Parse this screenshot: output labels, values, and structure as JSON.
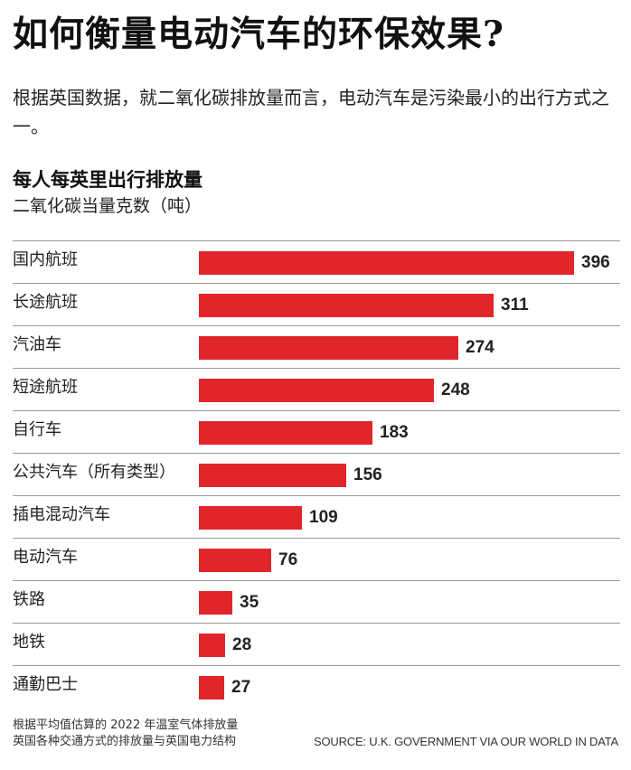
{
  "headline": "如何衡量电动汽车的环保效果?",
  "dek": "根据英国数据，就二氧化碳排放量而言，电动汽车是污染最小的出行方式之一。",
  "chart_data": {
    "type": "bar",
    "orientation": "horizontal",
    "title": "每人每英里出行排放量",
    "subtitle": "二氧化碳当量克数（吨）",
    "categories": [
      "国内航班",
      "长途航班",
      "汽油车",
      "短途航班",
      "自行车",
      "公共汽车（所有类型）",
      "插电混动汽车",
      "电动汽车",
      "铁路",
      "地铁",
      "通勤巴士"
    ],
    "values": [
      396,
      311,
      274,
      248,
      183,
      156,
      109,
      76,
      35,
      28,
      27
    ],
    "xlim": [
      0,
      396
    ],
    "bar_color": "#e0262b",
    "grid": false,
    "legend": "none"
  },
  "notes": [
    "根据平均值估算的 2022 年温室气体排放量",
    "英国各种交通方式的排放量与英国电力结构"
  ],
  "source": "SOURCE: U.K. GOVERNMENT VIA OUR WORLD IN DATA"
}
